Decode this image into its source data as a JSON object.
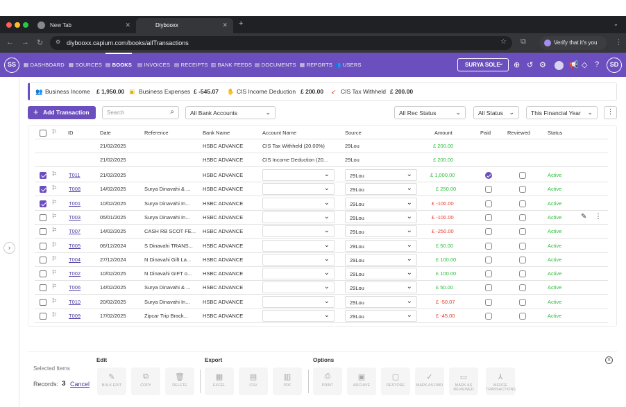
{
  "browser": {
    "tabs": [
      {
        "label": "New Tab"
      },
      {
        "label": "Diybooxx"
      }
    ],
    "url": "diybooxx.capium.com/books/allTransactions",
    "verify": "Verify that it's you"
  },
  "app": {
    "avatar": "SS",
    "nav": [
      "DASHBOARD",
      "SOURCES",
      "BOOKS",
      "INVOICES",
      "RECEIPTS",
      "BANK FEEDS",
      "DOCUMENTS",
      "REPORTS",
      "USERS"
    ],
    "user": "SURYA SOLE",
    "user_avatar": "SD"
  },
  "summary": {
    "income_label": "Business Income",
    "income": "£ 1,950.00",
    "expenses_label": "Business Expenses",
    "expenses": "£ -545.07",
    "cis_ded_label": "CIS Income Deduction",
    "cis_ded": "£ 200.00",
    "cis_tax_label": "CIS Tax Withheld",
    "cis_tax": "£ 200.00"
  },
  "toolbar": {
    "add": "Add Transaction",
    "search_placeholder": "Search",
    "bank": "All Bank Accounts",
    "rec": "All Rec Status",
    "status": "All Status",
    "year": "This Financial Year"
  },
  "columns": [
    "ID",
    "Date",
    "Reference",
    "Bank Name",
    "Account Name",
    "Source",
    "Amount",
    "Paid",
    "Reviewed",
    "Status"
  ],
  "subrows": [
    {
      "date": "21/02/2025",
      "bank": "HSBC ADVANCE",
      "account": "CIS Tax Withheld (20.00%)",
      "source": "29Lou",
      "amount": "£ 200.00"
    },
    {
      "date": "21/02/2025",
      "bank": "HSBC ADVANCE",
      "account": "CIS Income Deduction (20...",
      "source": "29Lou",
      "amount": "£ 200.00"
    }
  ],
  "rows": [
    {
      "checked": true,
      "id": "T011",
      "date": "21/02/2025",
      "ref": "",
      "bank": "HSBC ADVANCE",
      "source": "29Lou",
      "amount": "£ 1,000.00",
      "neg": false,
      "paid": true,
      "status": "Active"
    },
    {
      "checked": true,
      "id": "T008",
      "date": "14/02/2025",
      "ref": "Surya Dinavahi & ...",
      "bank": "HSBC ADVANCE",
      "source": "29Lou",
      "amount": "£ 250.00",
      "neg": false,
      "paid": false,
      "status": "Active"
    },
    {
      "checked": true,
      "id": "T001",
      "date": "10/02/2025",
      "ref": "Surya Dinavahi In...",
      "bank": "HSBC ADVANCE",
      "source": "29Lou",
      "amount": "£ -100.00",
      "neg": true,
      "paid": false,
      "status": "Active"
    },
    {
      "checked": false,
      "id": "T003",
      "date": "05/01/2025",
      "ref": "Surya Dinavahi In...",
      "bank": "HSBC ADVANCE",
      "source": "29Lou",
      "amount": "£ -100.00",
      "neg": true,
      "paid": false,
      "status": "Active"
    },
    {
      "checked": false,
      "id": "T007",
      "date": "14/02/2025",
      "ref": "CASH RB SCOT FE...",
      "bank": "HSBC ADVANCE",
      "source": "29Lou",
      "amount": "£ -250.00",
      "neg": true,
      "paid": false,
      "status": "Active"
    },
    {
      "checked": false,
      "id": "T005",
      "date": "06/12/2024",
      "ref": "S Dinavahi TRANS...",
      "bank": "HSBC ADVANCE",
      "source": "29Lou",
      "amount": "£ 50.00",
      "neg": false,
      "paid": false,
      "status": "Active"
    },
    {
      "checked": false,
      "id": "T004",
      "date": "27/12/2024",
      "ref": "N Dinavahi Gift La...",
      "bank": "HSBC ADVANCE",
      "source": "29Lou",
      "amount": "£ 100.00",
      "neg": false,
      "paid": false,
      "status": "Active"
    },
    {
      "checked": false,
      "id": "T002",
      "date": "10/02/2025",
      "ref": "N Dinavahi GIFT o...",
      "bank": "HSBC ADVANCE",
      "source": "29Lou",
      "amount": "£ 100.00",
      "neg": false,
      "paid": false,
      "status": "Active"
    },
    {
      "checked": false,
      "id": "T006",
      "date": "14/02/2025",
      "ref": "Surya Dinavahi & ...",
      "bank": "HSBC ADVANCE",
      "source": "29Lou",
      "amount": "£ 50.00",
      "neg": false,
      "paid": false,
      "status": "Active"
    },
    {
      "checked": false,
      "id": "T010",
      "date": "20/02/2025",
      "ref": "Surya Dinavahi In...",
      "bank": "HSBC ADVANCE",
      "source": "29Lou",
      "amount": "£ -50.07",
      "neg": true,
      "paid": false,
      "status": "Active"
    },
    {
      "checked": false,
      "id": "T009",
      "date": "17/02/2025",
      "ref": "Zipcar Trip Brack...",
      "bank": "HSBC ADVANCE",
      "source": "29Lou",
      "amount": "£ -45.00",
      "neg": true,
      "paid": false,
      "status": "Active"
    }
  ],
  "footer": {
    "selected": "Selected Items",
    "records_label": "Records:",
    "records": "3",
    "cancel": "Cancel",
    "edit": "Edit",
    "export": "Export",
    "options": "Options",
    "buttons": [
      {
        "label": "BULK EDIT",
        "icon": "✎"
      },
      {
        "label": "COPY",
        "icon": "⧉"
      },
      {
        "label": "DELETE",
        "icon": "🗑"
      },
      {
        "label": "EXCEL",
        "icon": "▦"
      },
      {
        "label": "CSV",
        "icon": "▤"
      },
      {
        "label": "PDF",
        "icon": "▥"
      },
      {
        "label": "PRINT",
        "icon": "⎙"
      },
      {
        "label": "ARCHIVE",
        "icon": "▣"
      },
      {
        "label": "RESTORE",
        "icon": "▢"
      },
      {
        "label": "MARK AS PAID",
        "icon": "✓"
      },
      {
        "label": "MARK AS REVIEWED",
        "icon": "▭"
      },
      {
        "label": "MERGE TRANSACTIONS",
        "icon": "⅄"
      }
    ]
  }
}
